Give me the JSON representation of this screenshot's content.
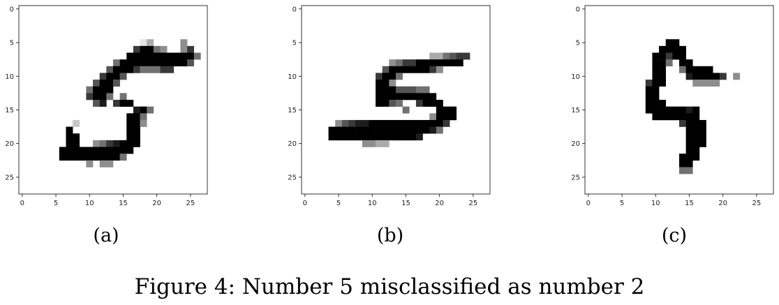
{
  "figure": {
    "caption": "Figure 4: Number 5 misclassified as number 2"
  },
  "chart_data": [
    {
      "type": "heatmap",
      "panel_label": "(a)",
      "xlim": [
        -0.5,
        27.5
      ],
      "ylim": [
        27.5,
        -0.5
      ],
      "x_ticks": [
        0,
        5,
        10,
        15,
        20,
        25
      ],
      "y_ticks": [
        0,
        5,
        10,
        15,
        20,
        25
      ],
      "colormap": "gray_r",
      "rows": [
        "............................",
        "............................",
        "............................",
        "............................",
        "............................",
        "..................13....4...",
        ".................79954..47..",
        "................99999999995.",
        "..............599999999996..",
        ".............6999755577.....",
        "............7996............",
        "...........6996.............",
        "..........5999..............",
        "..........7995.5............",
        "...........68.799...........",
        ".................895.........",
        "................995..........",
        "........2.......994..........",
        ".......9........99...........",
        ".......99.......99...........",
        ".......99..4578999...........",
        "......99999999999............",
        "......9999999995.............",
        "..........4.44...............",
        "............................",
        "............................",
        "............................",
        "............................"
      ]
    },
    {
      "type": "heatmap",
      "panel_label": "(b)",
      "xlim": [
        -0.5,
        27.5
      ],
      "ylim": [
        27.5,
        -0.5
      ],
      "x_ticks": [
        0,
        5,
        10,
        15,
        20,
        25
      ],
      "y_ticks": [
        0,
        5,
        10,
        15,
        20,
        25
      ],
      "colormap": "gray_r",
      "rows": [
        "............................",
        "............................",
        "............................",
        "............................",
        "............................",
        "............................",
        "............................",
        "...................335677...",
        ".............45779999999....",
        "............699999974.......",
        "...........7995.............",
        "...........994..............",
        "...........99966655.........",
        "...........999999999........",
        "...........9965..7999.......",
        "...............5....999......",
        "...................4999.....",
        ".....46788999999999997......",
        "....99999999999999985.......",
        "....99999999999998..........",
        ".........4433...............",
        "............................",
        "............................",
        "............................",
        "............................",
        "............................",
        "............................",
        "............................"
      ]
    },
    {
      "type": "heatmap",
      "panel_label": "(c)",
      "xlim": [
        -0.5,
        27.5
      ],
      "ylim": [
        27.5,
        -0.5
      ],
      "x_ticks": [
        0,
        5,
        10,
        15,
        20,
        25
      ],
      "y_ticks": [
        0,
        5,
        10,
        15,
        20,
        25
      ],
      "colormap": "gray_r",
      "rows": [
        "............................",
        "............................",
        "............................",
        "............................",
        "............................",
        "............99...............",
        "...........9999..............",
        "..........99799.............",
        "..........995.99............",
        "..........99..59999.........",
        "..........99...899997.4.....",
        ".........799....4444........",
        ".........99.................",
        ".........99.................",
        ".........999................",
        ".........99999989...........",
        "..........9999999...........",
        "..............7999..........",
        "...............999..........",
        "...............999..........",
        "...............999..........",
        "...............99...........",
        "..............999...........",
        "..............99............",
        "..............55............",
        "............................",
        "............................",
        "............................"
      ]
    }
  ]
}
